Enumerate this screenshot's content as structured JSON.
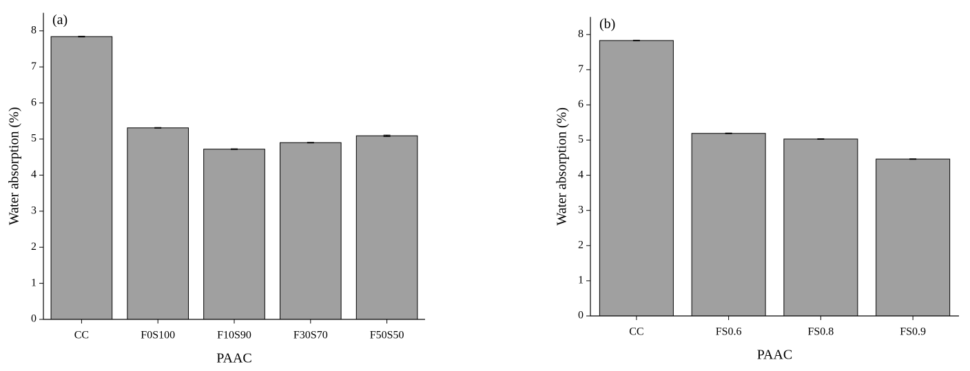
{
  "chart_data": [
    {
      "type": "bar",
      "annotation": "(a)",
      "xlabel": "PAAC",
      "ylabel": "Water absorption (%)",
      "categories": [
        "CC",
        "F0S100",
        "F10S90",
        "F30S70",
        "F50S50"
      ],
      "values": [
        7.84,
        5.31,
        4.72,
        4.9,
        5.09
      ],
      "errors": [
        0.01,
        0.01,
        0.01,
        0.01,
        0.02
      ],
      "color": "#a0a0a0",
      "ylim": [
        0,
        8.5
      ],
      "yticks": [
        0,
        1,
        2,
        3,
        4,
        5,
        6,
        7,
        8
      ]
    },
    {
      "type": "bar",
      "annotation": "(b)",
      "xlabel": "PAAC",
      "ylabel": "Water absorption (%)",
      "categories": [
        "CC",
        "FS0.6",
        "FS0.8",
        "FS0.9"
      ],
      "values": [
        7.83,
        5.19,
        5.03,
        4.46
      ],
      "errors": [
        0.01,
        0.01,
        0.01,
        0.01
      ],
      "color": "#a0a0a0",
      "ylim": [
        0,
        8.5
      ],
      "yticks": [
        0,
        1,
        2,
        3,
        4,
        5,
        6,
        7,
        8
      ]
    }
  ]
}
